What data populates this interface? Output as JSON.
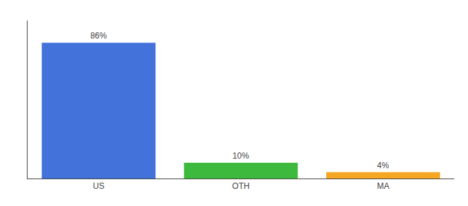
{
  "chart_data": {
    "type": "bar",
    "categories": [
      "US",
      "OTH",
      "MA"
    ],
    "values": [
      86,
      10,
      4
    ],
    "value_labels": [
      "86%",
      "10%",
      "4%"
    ],
    "colors": [
      "#4472db",
      "#3dba3d",
      "#f5a623"
    ],
    "ylim": [
      0,
      100
    ],
    "data_labels": true,
    "tick_labels": "x",
    "grid": false
  }
}
